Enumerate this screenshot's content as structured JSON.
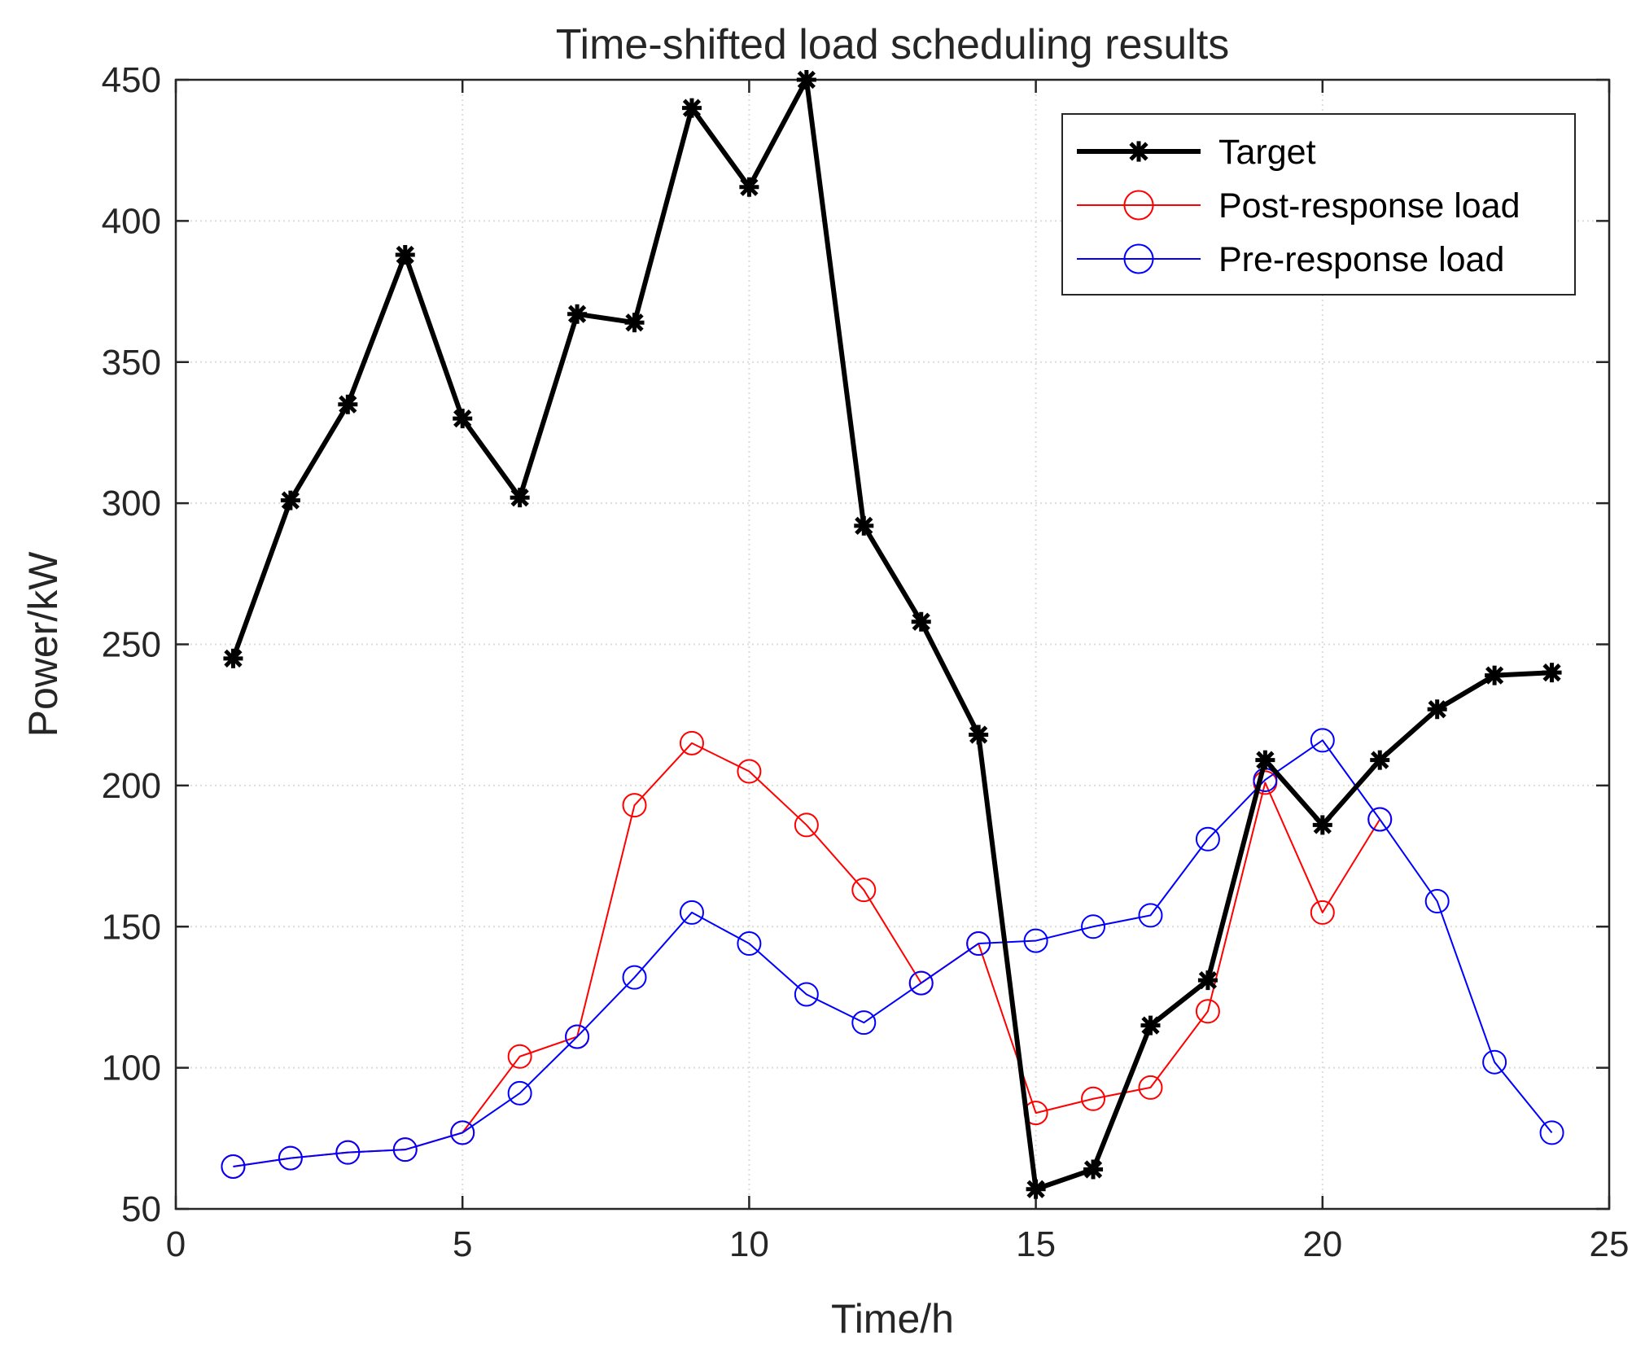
{
  "chart_data": {
    "type": "line",
    "title": "Time-shifted load scheduling results",
    "xlabel": "Time/h",
    "ylabel": "Power/kW",
    "xlim": [
      0,
      25
    ],
    "ylim": [
      50,
      450
    ],
    "xticks": [
      0,
      5,
      10,
      15,
      20,
      25
    ],
    "yticks": [
      50,
      100,
      150,
      200,
      250,
      300,
      350,
      400,
      450
    ],
    "grid": true,
    "legend_position": "top-right",
    "x": [
      1,
      2,
      3,
      4,
      5,
      6,
      7,
      8,
      9,
      10,
      11,
      12,
      13,
      14,
      15,
      16,
      17,
      18,
      19,
      20,
      21,
      22,
      23,
      24
    ],
    "series": [
      {
        "name": "Target",
        "color": "#000000",
        "marker": "asterisk",
        "line_style": "thick",
        "values": [
          245,
          301,
          335,
          388,
          330,
          302,
          367,
          364,
          440,
          412,
          450,
          292,
          258,
          218,
          57,
          64,
          115,
          131,
          209,
          186,
          209,
          227,
          239,
          240
        ]
      },
      {
        "name": "Post-response load",
        "color": "#ff0000",
        "marker": "circle",
        "line_style": "thin",
        "values": [
          65,
          68,
          70,
          71,
          77,
          104,
          111,
          193,
          215,
          205,
          186,
          163,
          130,
          144,
          84,
          89,
          93,
          120,
          201,
          155,
          188,
          null,
          null,
          null
        ]
      },
      {
        "name": "Pre-response load",
        "color": "#0000ff",
        "marker": "circle",
        "line_style": "thin",
        "values": [
          65,
          68,
          70,
          71,
          77,
          91,
          111,
          132,
          155,
          144,
          126,
          116,
          130,
          144,
          145,
          150,
          154,
          181,
          202,
          216,
          188,
          159,
          102,
          77
        ]
      }
    ]
  }
}
